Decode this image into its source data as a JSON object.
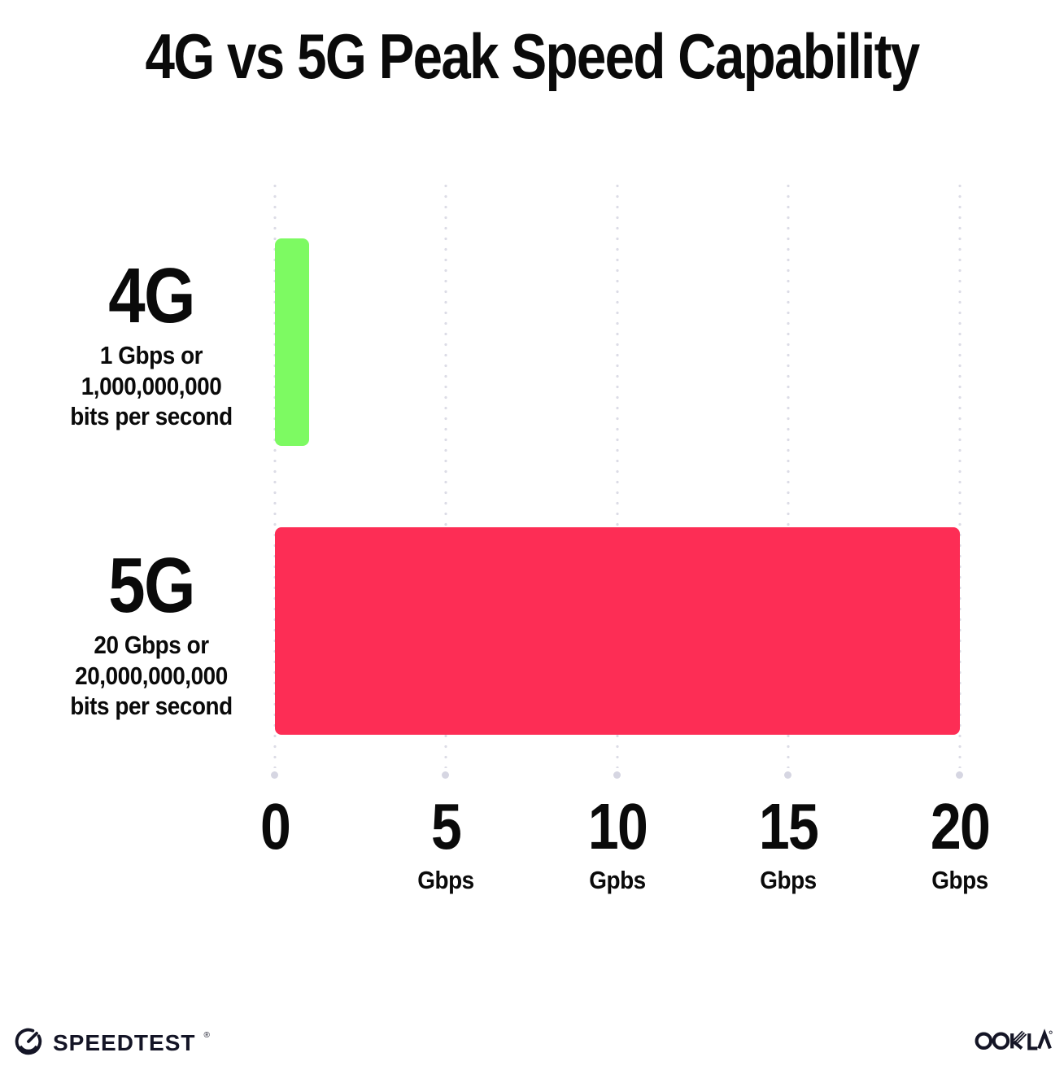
{
  "title": "4G vs 5G Peak Speed Capability",
  "chart_data": {
    "type": "bar",
    "orientation": "horizontal",
    "title": "4G vs 5G Peak Speed Capability",
    "categories": [
      "4G",
      "5G"
    ],
    "values": [
      1,
      20
    ],
    "unit": "Gbps",
    "xlim": [
      0,
      20
    ],
    "x_ticks": [
      0,
      5,
      10,
      15,
      20
    ],
    "bar_colors": [
      "#7DFA62",
      "#FD2D55"
    ],
    "grid": "dotted-vertical",
    "legend": "none"
  },
  "rows": [
    {
      "name": "4G",
      "line1": "1 Gbps or",
      "line2": "1,000,000,000",
      "line3": "bits per second",
      "value": 1,
      "color": "#7DFA62"
    },
    {
      "name": "5G",
      "line1": "20 Gbps or",
      "line2": "20,000,000,000",
      "line3": "bits per second",
      "value": 20,
      "color": "#FD2D55"
    }
  ],
  "axis": {
    "ticks": [
      {
        "label": "0",
        "unit": ""
      },
      {
        "label": "5",
        "unit": "Gbps"
      },
      {
        "label": "10",
        "unit": "Gpbs"
      },
      {
        "label": "15",
        "unit": "Gbps"
      },
      {
        "label": "20",
        "unit": "Gbps"
      }
    ]
  },
  "footer": {
    "speedtest_label": "SPEEDTEST",
    "speedtest_mark": "®",
    "ookla_label": "OOKLA"
  },
  "colors": {
    "background": "#ffffff",
    "text": "#0a0a0a",
    "gridline": "#dcdce6",
    "logo": "#141526",
    "bar_4g": "#7DFA62",
    "bar_5g": "#FD2D55"
  }
}
